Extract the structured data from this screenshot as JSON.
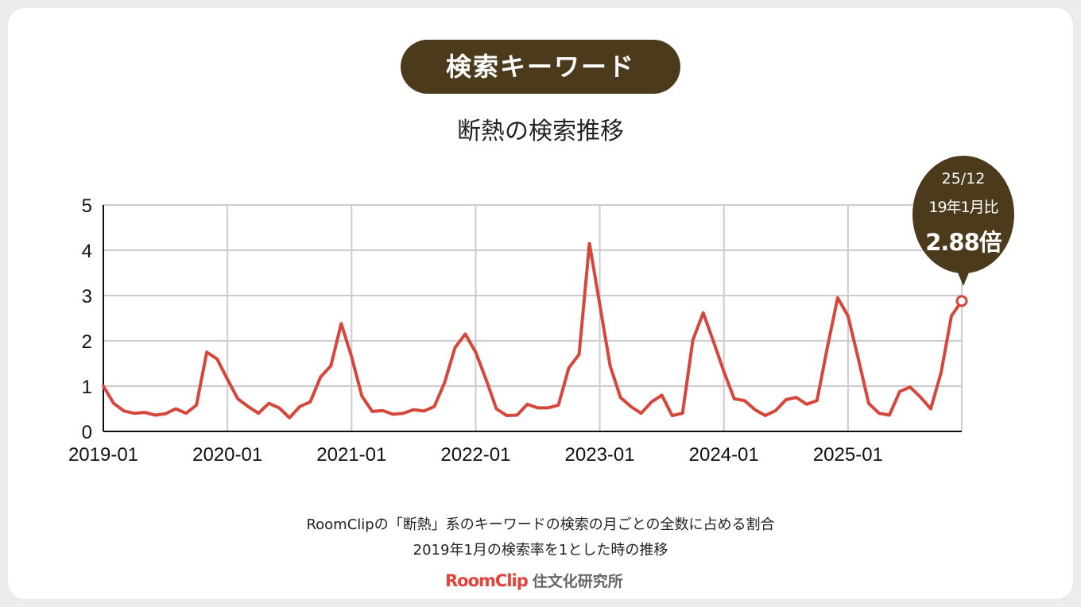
{
  "header": {
    "pill_label": "検索キーワード",
    "title": "断熱の検索推移"
  },
  "callout": {
    "line1": "25/12",
    "line2": "19年1月比",
    "line3": "2.88倍"
  },
  "captions": {
    "line1": "RoomClipの「断熱」系のキーワードの検索の月ごとの全数に占める割合",
    "line2": "2019年1月の検索率を1とした時の推移"
  },
  "logo": {
    "brand": "RoomClip",
    "lab": "住文化研究所"
  },
  "colors": {
    "accent": "#4b3a1b",
    "line": "#d5473a",
    "grid": "#cccccc"
  },
  "chart_data": {
    "type": "line",
    "title": "断熱の検索推移",
    "xlabel": "",
    "ylabel": "",
    "ylim": [
      0,
      5
    ],
    "yticks": [
      "0",
      "1",
      "2",
      "3",
      "4",
      "5"
    ],
    "xticks": [
      "2019-01",
      "2020-01",
      "2021-01",
      "2022-01",
      "2023-01",
      "2024-01",
      "2025-01"
    ],
    "grid": true,
    "x_start": "2019-01",
    "x_end": "2025-12",
    "series": [
      {
        "values": [
          1.0,
          0.62,
          0.45,
          0.4,
          0.42,
          0.36,
          0.39,
          0.5,
          0.4,
          0.58,
          1.75,
          1.6,
          1.15,
          0.72,
          0.55,
          0.4,
          0.62,
          0.52,
          0.3,
          0.55,
          0.65,
          1.2,
          1.45,
          2.38,
          1.65,
          0.78,
          0.44,
          0.46,
          0.38,
          0.4,
          0.48,
          0.45,
          0.55,
          1.08,
          1.85,
          2.15,
          1.75,
          1.15,
          0.5,
          0.35,
          0.36,
          0.6,
          0.52,
          0.52,
          0.58,
          1.4,
          1.7,
          4.15,
          2.8,
          1.45,
          0.75,
          0.55,
          0.4,
          0.65,
          0.8,
          0.35,
          0.4,
          2.02,
          2.62,
          1.98,
          1.32,
          0.72,
          0.68,
          0.48,
          0.35,
          0.46,
          0.7,
          0.75,
          0.6,
          0.68,
          1.85,
          2.95,
          2.55,
          1.6,
          0.62,
          0.4,
          0.36,
          0.88,
          0.98,
          0.76,
          0.5,
          1.3,
          2.55,
          2.88
        ]
      }
    ]
  }
}
